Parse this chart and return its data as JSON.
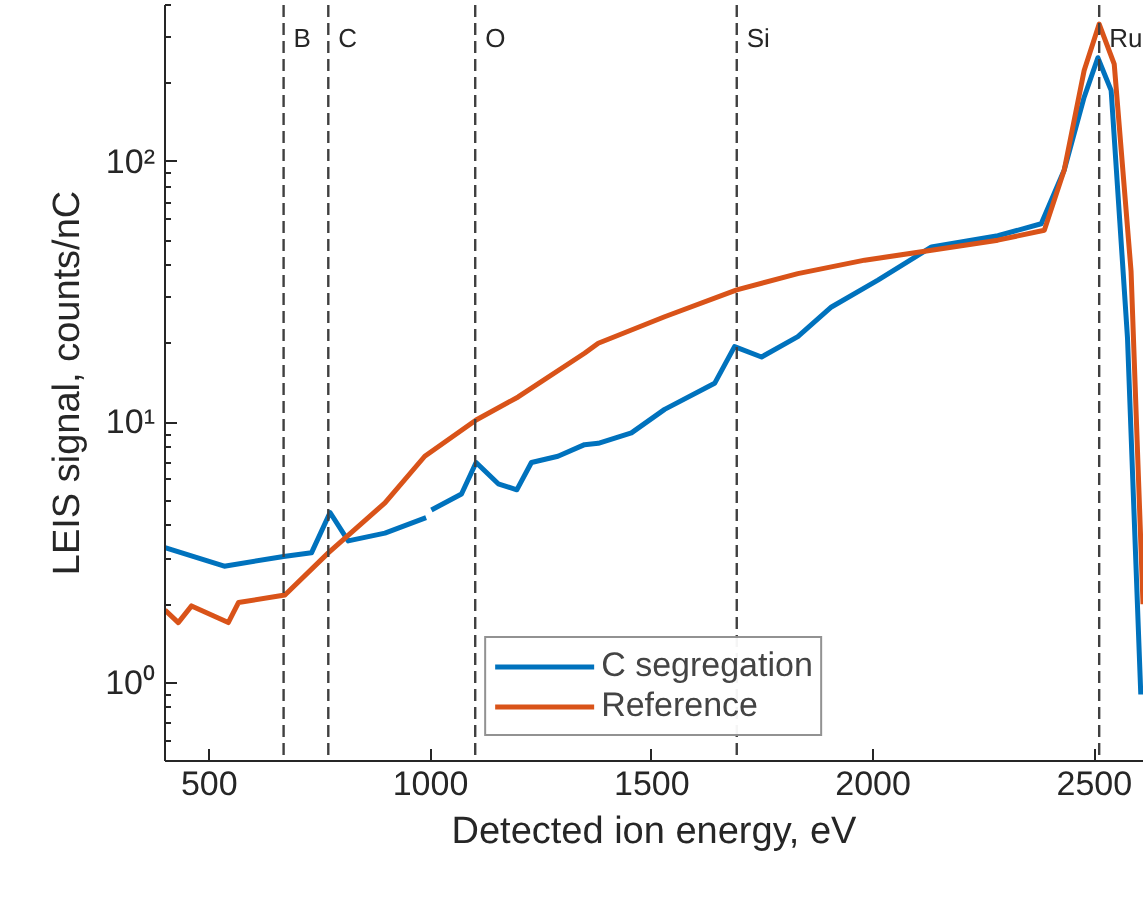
{
  "chart_data": {
    "type": "line",
    "xlabel": "Detected ion energy, eV",
    "ylabel": "LEIS signal, counts/nC",
    "log": "y",
    "grid": false,
    "legend": "bottom",
    "xlim": [
      400,
      2610
    ],
    "xticks": [
      500,
      1000,
      1500,
      2000,
      2500
    ],
    "ylim": [
      0.5,
      400
    ],
    "yticks": [
      {
        "value": 1,
        "label": "10⁰"
      },
      {
        "value": 10,
        "label": "10¹"
      },
      {
        "value": 100,
        "label": "10²"
      }
    ],
    "ref_lines": [
      {
        "axis": "x",
        "value": 668,
        "label": "B",
        "color": "#404040",
        "line_style": "dashed"
      },
      {
        "axis": "x",
        "value": 769,
        "label": "C",
        "color": "#404040",
        "line_style": "dashed"
      },
      {
        "axis": "x",
        "value": 1101,
        "label": "O",
        "color": "#404040",
        "line_style": "dashed"
      },
      {
        "axis": "x",
        "value": 1692,
        "label": "Si",
        "color": "#404040",
        "line_style": "dashed"
      },
      {
        "axis": "x",
        "value": 2511,
        "label": "Ru",
        "color": "#404040",
        "line_style": "dashed"
      }
    ],
    "series": [
      {
        "name": "C segregation",
        "color": "#0072bd",
        "x": [
          400,
          534,
          668,
          731,
          773,
          814,
          897,
          990,
          996,
          1002,
          1070,
          1103,
          1153,
          1195,
          1228,
          1288,
          1348,
          1379,
          1454,
          1529,
          1642,
          1687,
          1748,
          1830,
          1906,
          2011,
          2132,
          2282,
          2380,
          2432,
          2477,
          2508,
          2538,
          2575,
          2605
        ],
        "values": [
          3.3,
          2.8,
          3.05,
          3.15,
          4.5,
          3.5,
          3.75,
          4.3,
          null,
          4.6,
          5.3,
          7.0,
          5.8,
          5.5,
          7.0,
          7.4,
          8.2,
          8.3,
          9.1,
          11.2,
          14.1,
          19.5,
          17.8,
          21.3,
          27.7,
          35.1,
          47.1,
          52,
          57.8,
          93,
          177,
          251,
          188,
          21,
          0.9
        ]
      },
      {
        "name": "Reference",
        "color": "#d95319",
        "x": [
          400,
          430,
          460,
          543,
          566,
          671,
          769,
          897,
          987,
          1103,
          1198,
          1348,
          1379,
          1529,
          1692,
          1830,
          1981,
          2132,
          2282,
          2387,
          2432,
          2477,
          2511,
          2545,
          2583,
          2610
        ],
        "values": [
          1.9,
          1.7,
          1.97,
          1.7,
          2.03,
          2.17,
          3.15,
          4.9,
          7.4,
          10.2,
          12.5,
          18.4,
          20.1,
          25.4,
          32.2,
          37.2,
          41.9,
          45.7,
          50,
          54.6,
          93,
          224,
          338,
          237,
          38,
          2.0
        ]
      }
    ]
  }
}
